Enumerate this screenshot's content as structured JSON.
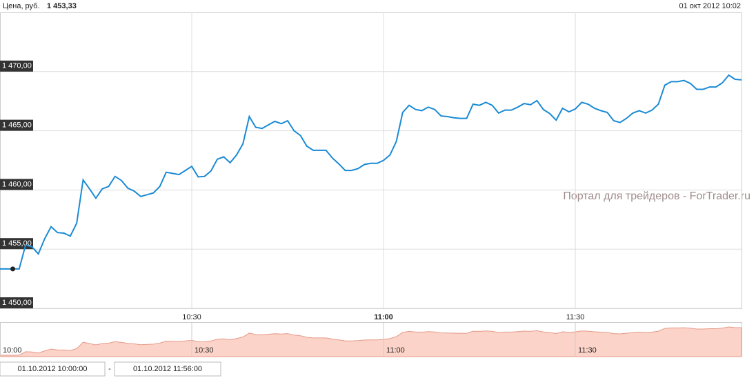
{
  "header": {
    "label": "Цена, руб.",
    "price": "1 453,33",
    "datetime": "01 окт 2012 10:02"
  },
  "watermark": "Портал для трейдеров - ForTrader.ru",
  "chart_data": {
    "type": "line",
    "x": [
      "10:00",
      "10:01",
      "10:02",
      "10:03",
      "10:04",
      "10:05",
      "10:06",
      "10:07",
      "10:08",
      "10:09",
      "10:10",
      "10:11",
      "10:12",
      "10:13",
      "10:14",
      "10:15",
      "10:16",
      "10:17",
      "10:18",
      "10:19",
      "10:20",
      "10:21",
      "10:22",
      "10:23",
      "10:24",
      "10:25",
      "10:26",
      "10:27",
      "10:28",
      "10:29",
      "10:30",
      "10:31",
      "10:32",
      "10:33",
      "10:34",
      "10:35",
      "10:36",
      "10:37",
      "10:38",
      "10:39",
      "10:40",
      "10:41",
      "10:42",
      "10:43",
      "10:44",
      "10:45",
      "10:46",
      "10:47",
      "10:48",
      "10:49",
      "10:50",
      "10:51",
      "10:52",
      "10:53",
      "10:54",
      "10:55",
      "10:56",
      "10:57",
      "10:58",
      "10:59",
      "11:00",
      "11:01",
      "11:02",
      "11:03",
      "11:04",
      "11:05",
      "11:06",
      "11:07",
      "11:08",
      "11:09",
      "11:10",
      "11:11",
      "11:12",
      "11:13",
      "11:14",
      "11:15",
      "11:16",
      "11:17",
      "11:18",
      "11:19",
      "11:20",
      "11:21",
      "11:22",
      "11:23",
      "11:24",
      "11:25",
      "11:26",
      "11:27",
      "11:28",
      "11:29",
      "11:30",
      "11:31",
      "11:32",
      "11:33",
      "11:34",
      "11:35",
      "11:36",
      "11:37",
      "11:38",
      "11:39",
      "11:40",
      "11:41",
      "11:42",
      "11:43",
      "11:44",
      "11:45",
      "11:46",
      "11:47",
      "11:48",
      "11:49",
      "11:50",
      "11:51",
      "11:52",
      "11:53",
      "11:54",
      "11:55",
      "11:56"
    ],
    "series": [
      {
        "color": "#1a8ad4",
        "values": [
          1453.33,
          1453.33,
          1453.33,
          1453.33,
          1455.35,
          1455.2,
          1454.6,
          1455.9,
          1456.9,
          1456.4,
          1456.35,
          1456.1,
          1457.2,
          1460.85,
          1460.1,
          1459.3,
          1460.1,
          1460.3,
          1461.15,
          1460.8,
          1460.15,
          1459.9,
          1459.45,
          1459.6,
          1459.75,
          1460.3,
          1461.5,
          1461.4,
          1461.3,
          1461.65,
          1462.0,
          1461.1,
          1461.15,
          1461.6,
          1462.6,
          1462.8,
          1462.3,
          1462.95,
          1463.9,
          1466.2,
          1465.3,
          1465.2,
          1465.5,
          1465.8,
          1465.6,
          1465.85,
          1465.0,
          1464.6,
          1463.7,
          1463.35,
          1463.35,
          1463.35,
          1462.7,
          1462.2,
          1461.65,
          1461.65,
          1461.8,
          1462.15,
          1462.25,
          1462.25,
          1462.5,
          1462.95,
          1464.1,
          1466.55,
          1467.15,
          1466.8,
          1466.7,
          1467.0,
          1466.8,
          1466.25,
          1466.2,
          1466.1,
          1466.05,
          1466.05,
          1467.25,
          1467.15,
          1467.4,
          1467.15,
          1466.5,
          1466.75,
          1466.75,
          1467.0,
          1467.3,
          1467.2,
          1467.55,
          1466.8,
          1466.45,
          1465.9,
          1466.9,
          1466.6,
          1466.85,
          1467.4,
          1467.25,
          1466.9,
          1466.7,
          1466.55,
          1465.85,
          1465.7,
          1466.05,
          1466.5,
          1466.7,
          1466.5,
          1466.75,
          1467.25,
          1468.85,
          1469.15,
          1469.15,
          1469.25,
          1469.0,
          1468.5,
          1468.5,
          1468.7,
          1468.7,
          1469.05,
          1469.7,
          1469.35,
          1469.3
        ]
      }
    ],
    "xlim": [
      "10:00",
      "11:56"
    ],
    "xticks": [
      "10:30",
      "11:00",
      "11:30"
    ],
    "ylim": [
      1450,
      1475
    ],
    "yticks": [
      {
        "value": 1450,
        "label": "1 450,00"
      },
      {
        "value": 1455,
        "label": "1 455,00"
      },
      {
        "value": 1460,
        "label": "1 460,00"
      },
      {
        "value": 1465,
        "label": "1 465,00"
      },
      {
        "value": 1470,
        "label": "1 470,00"
      }
    ],
    "grid": true,
    "navigator": {
      "color": "#fcd3c8",
      "xticks": [
        "10:00",
        "10:30",
        "11:00",
        "11:30"
      ]
    }
  },
  "range": {
    "from": "01.10.2012 10:00:00",
    "separator": "-",
    "to": "01.10.2012 11:56:00"
  }
}
